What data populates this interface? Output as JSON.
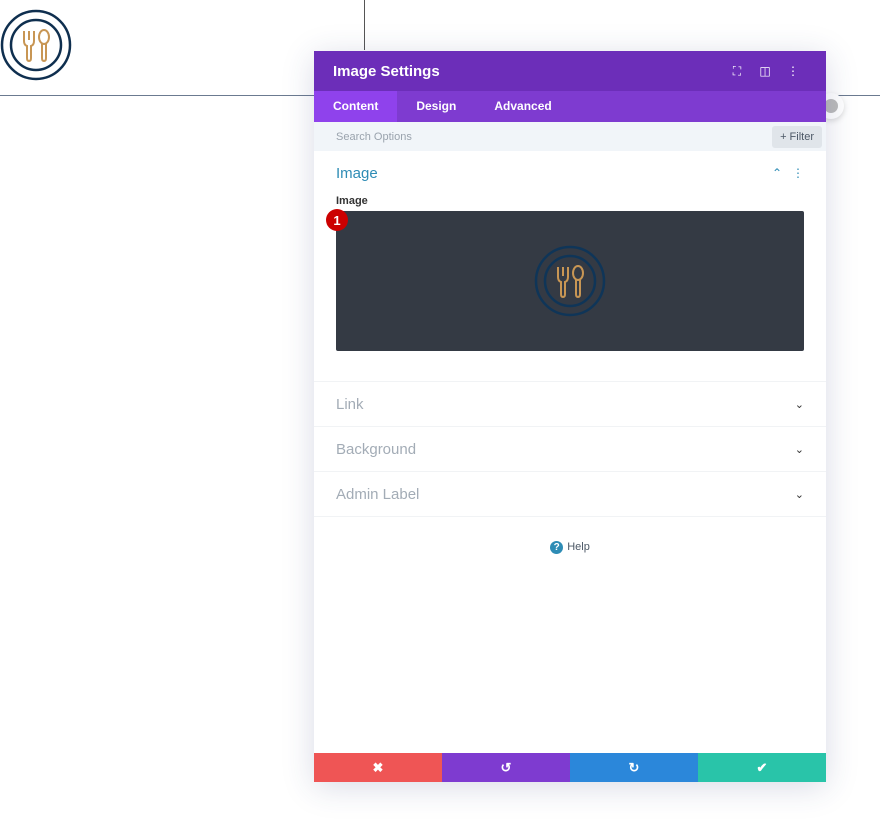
{
  "modal": {
    "title": "Image Settings",
    "tabs": [
      "Content",
      "Design",
      "Advanced"
    ],
    "search_placeholder": "Search Options",
    "filter_label": "+ Filter"
  },
  "sections": {
    "image": {
      "title": "Image",
      "field_label": "Image",
      "badge": "1"
    },
    "link": "Link",
    "background": "Background",
    "admin_label": "Admin Label"
  },
  "help_label": "Help",
  "footer": {
    "cancel": "✖",
    "undo": "↺",
    "redo": "↻",
    "save": "✔"
  },
  "colors": {
    "header": "#6c2eb9",
    "tabs": "#7e3bd0",
    "cancel": "#ef5555",
    "undo": "#7e3bd0",
    "redo": "#2b87da",
    "save": "#29c4a9"
  }
}
